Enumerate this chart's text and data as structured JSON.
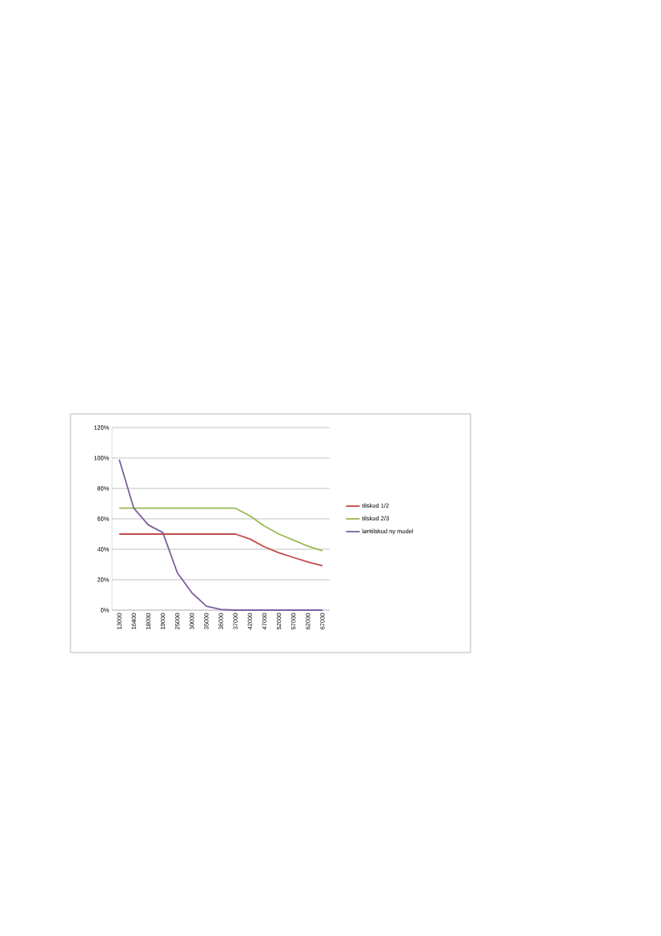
{
  "chart_data": {
    "type": "line",
    "categories": [
      "13000",
      "16400",
      "18000",
      "19000",
      "25000",
      "30000",
      "35000",
      "36000",
      "37000",
      "42000",
      "47000",
      "52000",
      "57000",
      "62000",
      "67000"
    ],
    "series": [
      {
        "name": "tilskud 1/2",
        "color": "#be4b48",
        "values": [
          50,
          50,
          50,
          50,
          50,
          50,
          50,
          50,
          50,
          46.8,
          41.6,
          37.7,
          34.6,
          31.6,
          29.1
        ]
      },
      {
        "name": "tilskud 2/3",
        "color": "#98b954",
        "values": [
          67,
          67,
          67,
          67,
          67,
          67,
          67,
          67,
          67,
          62,
          55.3,
          50,
          46,
          42,
          39
        ]
      },
      {
        "name": "løntilskud ny model",
        "color": "#7d60a0",
        "values": [
          99,
          67,
          56,
          51,
          24.6,
          11.4,
          2.6,
          0.4,
          0,
          0,
          0,
          0,
          0,
          0,
          0
        ]
      }
    ],
    "ylim": [
      0,
      120
    ],
    "yticks": [
      {
        "value": 0,
        "label": "0%"
      },
      {
        "value": 20,
        "label": "20%"
      },
      {
        "value": 40,
        "label": "40%"
      },
      {
        "value": 60,
        "label": "60%"
      },
      {
        "value": 80,
        "label": "80%"
      },
      {
        "value": 100,
        "label": "100%"
      },
      {
        "value": 120,
        "label": "120%"
      }
    ],
    "grid": "y",
    "legend": "right",
    "marker": "none",
    "line_style": "solid"
  }
}
